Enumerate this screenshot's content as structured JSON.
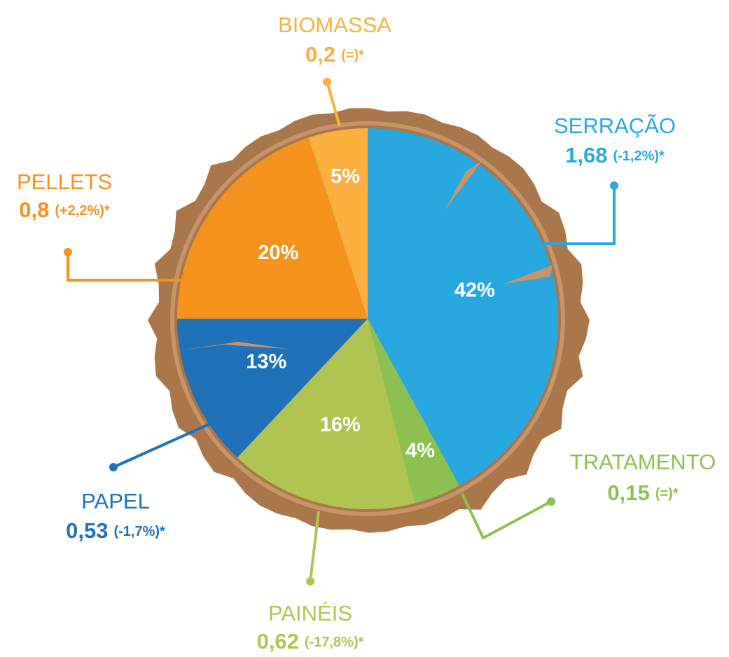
{
  "chart_data": {
    "type": "pie",
    "categories": [
      "SERRAÇÃO",
      "TRATAMENTO",
      "PAINÉIS",
      "PAPEL",
      "PELLETS",
      "BIOMASSA"
    ],
    "values": [
      42,
      4,
      16,
      13,
      20,
      5
    ],
    "value_labels": [
      "42%",
      "4%",
      "16%",
      "13%",
      "20%",
      "5%"
    ],
    "colors": [
      "#29a8e0",
      "#8cc152",
      "#b0c452",
      "#1f72b8",
      "#f5921e",
      "#fbb040"
    ],
    "amount_labels": [
      "1,68",
      "0,15",
      "0,62",
      "0,53",
      "0,8",
      "0,2"
    ],
    "change_labels": [
      "(-1,2%)*",
      "(=)*",
      "(-17,8%)*",
      "(-1,7%)*",
      "(+2,2%)*",
      "(=)*"
    ]
  }
}
